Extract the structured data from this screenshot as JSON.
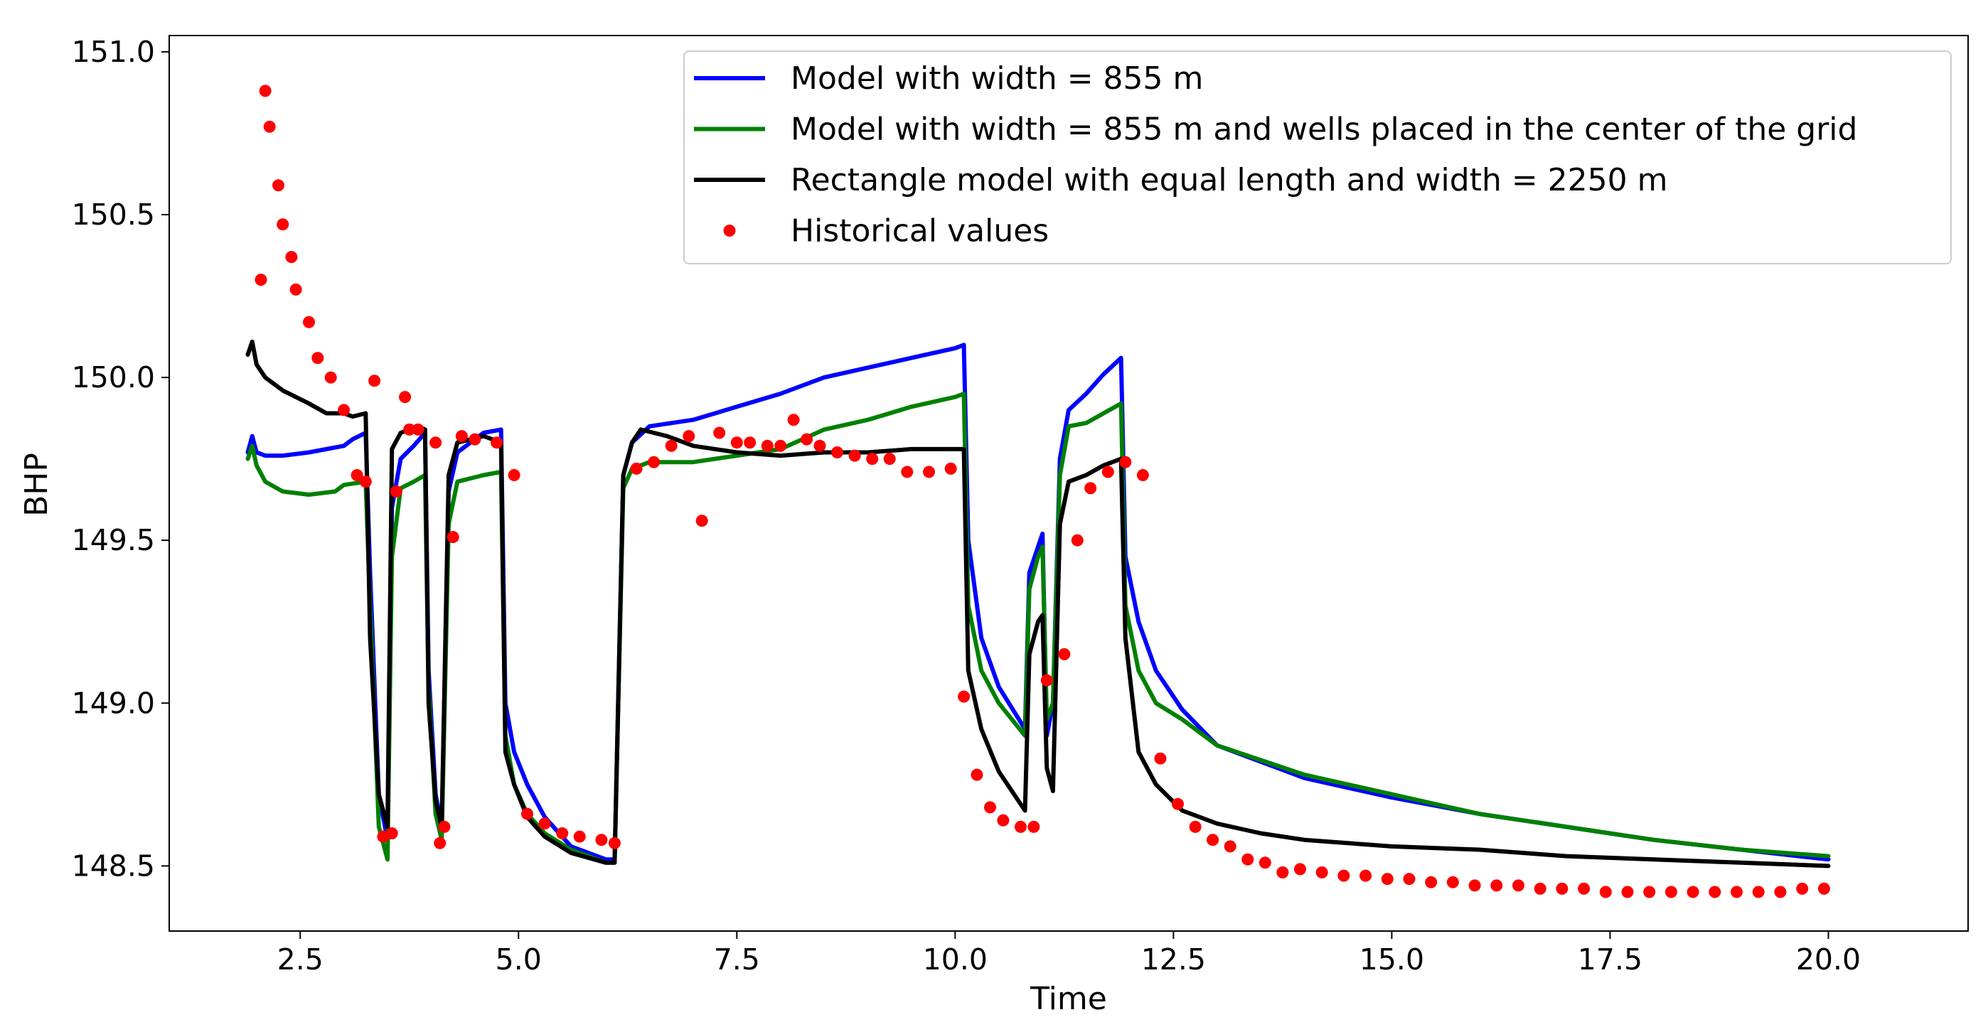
{
  "chart_data": {
    "type": "line",
    "title": "",
    "xlabel": "Time",
    "ylabel": "BHP",
    "xlim": [
      1.0,
      21.6
    ],
    "ylim": [
      148.3,
      151.05
    ],
    "xticks": [
      2.5,
      5.0,
      7.5,
      10.0,
      12.5,
      15.0,
      17.5,
      20.0
    ],
    "xtick_labels": [
      "2.5",
      "5.0",
      "7.5",
      "10.0",
      "12.5",
      "15.0",
      "17.5",
      "20.0"
    ],
    "yticks": [
      148.5,
      149.0,
      149.5,
      150.0,
      150.5,
      151.0
    ],
    "ytick_labels": [
      "148.5",
      "149.0",
      "149.5",
      "150.0",
      "150.5",
      "151.0"
    ],
    "grid": false,
    "legend_position": "top-right",
    "series": [
      {
        "name": "Model with width = 855 m",
        "kind": "line",
        "color": "#0000ff",
        "x": [
          1.9,
          1.95,
          2.0,
          2.1,
          2.3,
          2.6,
          3.0,
          3.1,
          3.25,
          3.3,
          3.4,
          3.5,
          3.55,
          3.65,
          3.8,
          3.93,
          3.97,
          4.05,
          4.12,
          4.2,
          4.3,
          4.6,
          4.8,
          4.85,
          4.95,
          5.1,
          5.3,
          5.6,
          6.0,
          6.1,
          6.2,
          6.3,
          6.5,
          7.0,
          7.5,
          8.0,
          8.5,
          9.0,
          9.5,
          10.0,
          10.1,
          10.15,
          10.3,
          10.5,
          10.8,
          10.85,
          10.95,
          11.0,
          11.05,
          11.12,
          11.2,
          11.3,
          11.5,
          11.7,
          11.9,
          11.95,
          12.1,
          12.3,
          12.6,
          13.0,
          14.0,
          15.0,
          16.0,
          17.0,
          18.0,
          19.0,
          20.0
        ],
        "y": [
          149.77,
          149.82,
          149.77,
          149.76,
          149.76,
          149.77,
          149.79,
          149.81,
          149.83,
          149.4,
          148.72,
          148.58,
          149.6,
          149.75,
          149.79,
          149.83,
          149.1,
          148.72,
          148.62,
          149.65,
          149.77,
          149.83,
          149.84,
          149.0,
          148.85,
          148.75,
          148.65,
          148.56,
          148.52,
          148.52,
          149.7,
          149.8,
          149.85,
          149.87,
          149.91,
          149.95,
          150.0,
          150.03,
          150.06,
          150.09,
          150.1,
          149.5,
          149.2,
          149.05,
          148.92,
          149.4,
          149.48,
          149.52,
          148.9,
          149.0,
          149.75,
          149.9,
          149.95,
          150.01,
          150.06,
          149.45,
          149.25,
          149.1,
          148.98,
          148.87,
          148.77,
          148.71,
          148.66,
          148.62,
          148.58,
          148.55,
          148.52
        ]
      },
      {
        "name": "Model with width = 855 m and wells placed in the center of the grid",
        "kind": "line",
        "color": "#008000",
        "x": [
          1.9,
          1.95,
          2.0,
          2.1,
          2.3,
          2.6,
          2.9,
          3.0,
          3.25,
          3.3,
          3.4,
          3.5,
          3.55,
          3.65,
          3.8,
          3.93,
          3.97,
          4.05,
          4.12,
          4.2,
          4.3,
          4.6,
          4.8,
          4.85,
          4.95,
          5.1,
          5.3,
          5.6,
          6.0,
          6.1,
          6.2,
          6.3,
          6.5,
          7.0,
          7.5,
          8.0,
          8.5,
          9.0,
          9.5,
          10.0,
          10.1,
          10.15,
          10.3,
          10.5,
          10.8,
          10.85,
          10.95,
          11.0,
          11.05,
          11.12,
          11.2,
          11.3,
          11.5,
          11.7,
          11.9,
          11.95,
          12.1,
          12.3,
          12.6,
          13.0,
          14.0,
          15.0,
          16.0,
          17.0,
          18.0,
          19.0,
          20.0
        ],
        "y": [
          149.75,
          149.79,
          149.73,
          149.68,
          149.65,
          149.64,
          149.65,
          149.67,
          149.68,
          149.3,
          148.62,
          148.52,
          149.45,
          149.66,
          149.68,
          149.7,
          149.05,
          148.66,
          148.58,
          149.55,
          149.68,
          149.7,
          149.71,
          148.9,
          148.75,
          148.66,
          148.6,
          148.55,
          148.51,
          148.51,
          149.66,
          149.72,
          149.74,
          149.74,
          149.76,
          149.78,
          149.84,
          149.87,
          149.91,
          149.94,
          149.95,
          149.3,
          149.1,
          149.0,
          148.9,
          149.35,
          149.45,
          149.48,
          148.95,
          149.0,
          149.7,
          149.85,
          149.86,
          149.89,
          149.92,
          149.3,
          149.1,
          149.0,
          148.95,
          148.87,
          148.78,
          148.72,
          148.66,
          148.62,
          148.58,
          148.55,
          148.53
        ]
      },
      {
        "name": "Rectangle model with equal length and width = 2250 m",
        "kind": "line",
        "color": "#000000",
        "x": [
          1.9,
          1.95,
          2.0,
          2.1,
          2.3,
          2.6,
          2.8,
          3.0,
          3.1,
          3.25,
          3.3,
          3.4,
          3.5,
          3.55,
          3.65,
          3.85,
          3.93,
          3.97,
          4.05,
          4.12,
          4.2,
          4.3,
          4.6,
          4.8,
          4.85,
          4.95,
          5.1,
          5.3,
          5.6,
          6.0,
          6.1,
          6.2,
          6.3,
          6.4,
          6.7,
          7.0,
          7.5,
          8.0,
          8.5,
          9.0,
          9.5,
          10.0,
          10.1,
          10.15,
          10.3,
          10.5,
          10.8,
          10.85,
          10.95,
          11.0,
          11.05,
          11.12,
          11.2,
          11.3,
          11.5,
          11.7,
          11.9,
          11.95,
          12.1,
          12.3,
          12.6,
          13.0,
          13.5,
          14.0,
          15.0,
          16.0,
          17.0,
          18.0,
          19.0,
          20.0
        ],
        "y": [
          150.07,
          150.11,
          150.04,
          150.0,
          149.96,
          149.92,
          149.89,
          149.89,
          149.88,
          149.89,
          149.2,
          148.72,
          148.62,
          149.78,
          149.83,
          149.85,
          149.84,
          149.0,
          148.7,
          148.62,
          149.7,
          149.8,
          149.82,
          149.8,
          148.85,
          148.75,
          148.65,
          148.59,
          148.54,
          148.51,
          148.51,
          149.7,
          149.8,
          149.84,
          149.82,
          149.79,
          149.77,
          149.76,
          149.77,
          149.77,
          149.78,
          149.78,
          149.78,
          149.1,
          148.92,
          148.79,
          148.67,
          149.15,
          149.25,
          149.27,
          148.8,
          148.73,
          149.55,
          149.68,
          149.7,
          149.73,
          149.75,
          149.2,
          148.85,
          148.75,
          148.67,
          148.63,
          148.6,
          148.58,
          148.56,
          148.55,
          148.53,
          148.52,
          148.51,
          148.5
        ]
      },
      {
        "name": "Historical values",
        "kind": "scatter",
        "color": "#ff0000",
        "x": [
          2.05,
          2.1,
          2.15,
          2.25,
          2.3,
          2.4,
          2.45,
          2.6,
          2.7,
          2.85,
          3.0,
          3.15,
          3.25,
          3.35,
          3.45,
          3.55,
          3.6,
          3.7,
          3.75,
          3.85,
          4.05,
          4.1,
          4.15,
          4.25,
          4.35,
          4.5,
          4.75,
          4.95,
          5.1,
          5.3,
          5.5,
          5.7,
          5.95,
          6.1,
          6.35,
          6.55,
          6.75,
          6.95,
          7.1,
          7.3,
          7.5,
          7.65,
          7.85,
          8.0,
          8.15,
          8.3,
          8.45,
          8.65,
          8.85,
          9.05,
          9.25,
          9.45,
          9.7,
          9.95,
          10.1,
          10.25,
          10.4,
          10.55,
          10.75,
          10.9,
          11.05,
          11.25,
          11.4,
          11.55,
          11.75,
          11.95,
          12.15,
          12.35,
          12.55,
          12.75,
          12.95,
          13.15,
          13.35,
          13.55,
          13.75,
          13.95,
          14.2,
          14.45,
          14.7,
          14.95,
          15.2,
          15.45,
          15.7,
          15.95,
          16.2,
          16.45,
          16.7,
          16.95,
          17.2,
          17.45,
          17.7,
          17.95,
          18.2,
          18.45,
          18.7,
          18.95,
          19.2,
          19.45,
          19.7,
          19.95
        ],
        "y": [
          150.3,
          150.88,
          150.77,
          150.59,
          150.47,
          150.37,
          150.27,
          150.17,
          150.06,
          150.0,
          149.9,
          149.7,
          149.68,
          149.99,
          148.59,
          148.6,
          149.65,
          149.94,
          149.84,
          149.84,
          149.8,
          148.57,
          148.62,
          149.51,
          149.82,
          149.81,
          149.8,
          149.7,
          148.66,
          148.63,
          148.6,
          148.59,
          148.58,
          148.57,
          149.72,
          149.74,
          149.79,
          149.82,
          149.56,
          149.83,
          149.8,
          149.8,
          149.79,
          149.79,
          149.87,
          149.81,
          149.79,
          149.77,
          149.76,
          149.75,
          149.75,
          149.71,
          149.71,
          149.72,
          149.02,
          148.78,
          148.68,
          148.64,
          148.62,
          148.62,
          149.07,
          149.15,
          149.5,
          149.66,
          149.71,
          149.74,
          149.7,
          148.83,
          148.69,
          148.62,
          148.58,
          148.56,
          148.52,
          148.51,
          148.48,
          148.49,
          148.48,
          148.47,
          148.47,
          148.46,
          148.46,
          148.45,
          148.45,
          148.44,
          148.44,
          148.44,
          148.43,
          148.43,
          148.43,
          148.42,
          148.42,
          148.42,
          148.42,
          148.42,
          148.42,
          148.42,
          148.42,
          148.42,
          148.43,
          148.43
        ]
      }
    ]
  }
}
